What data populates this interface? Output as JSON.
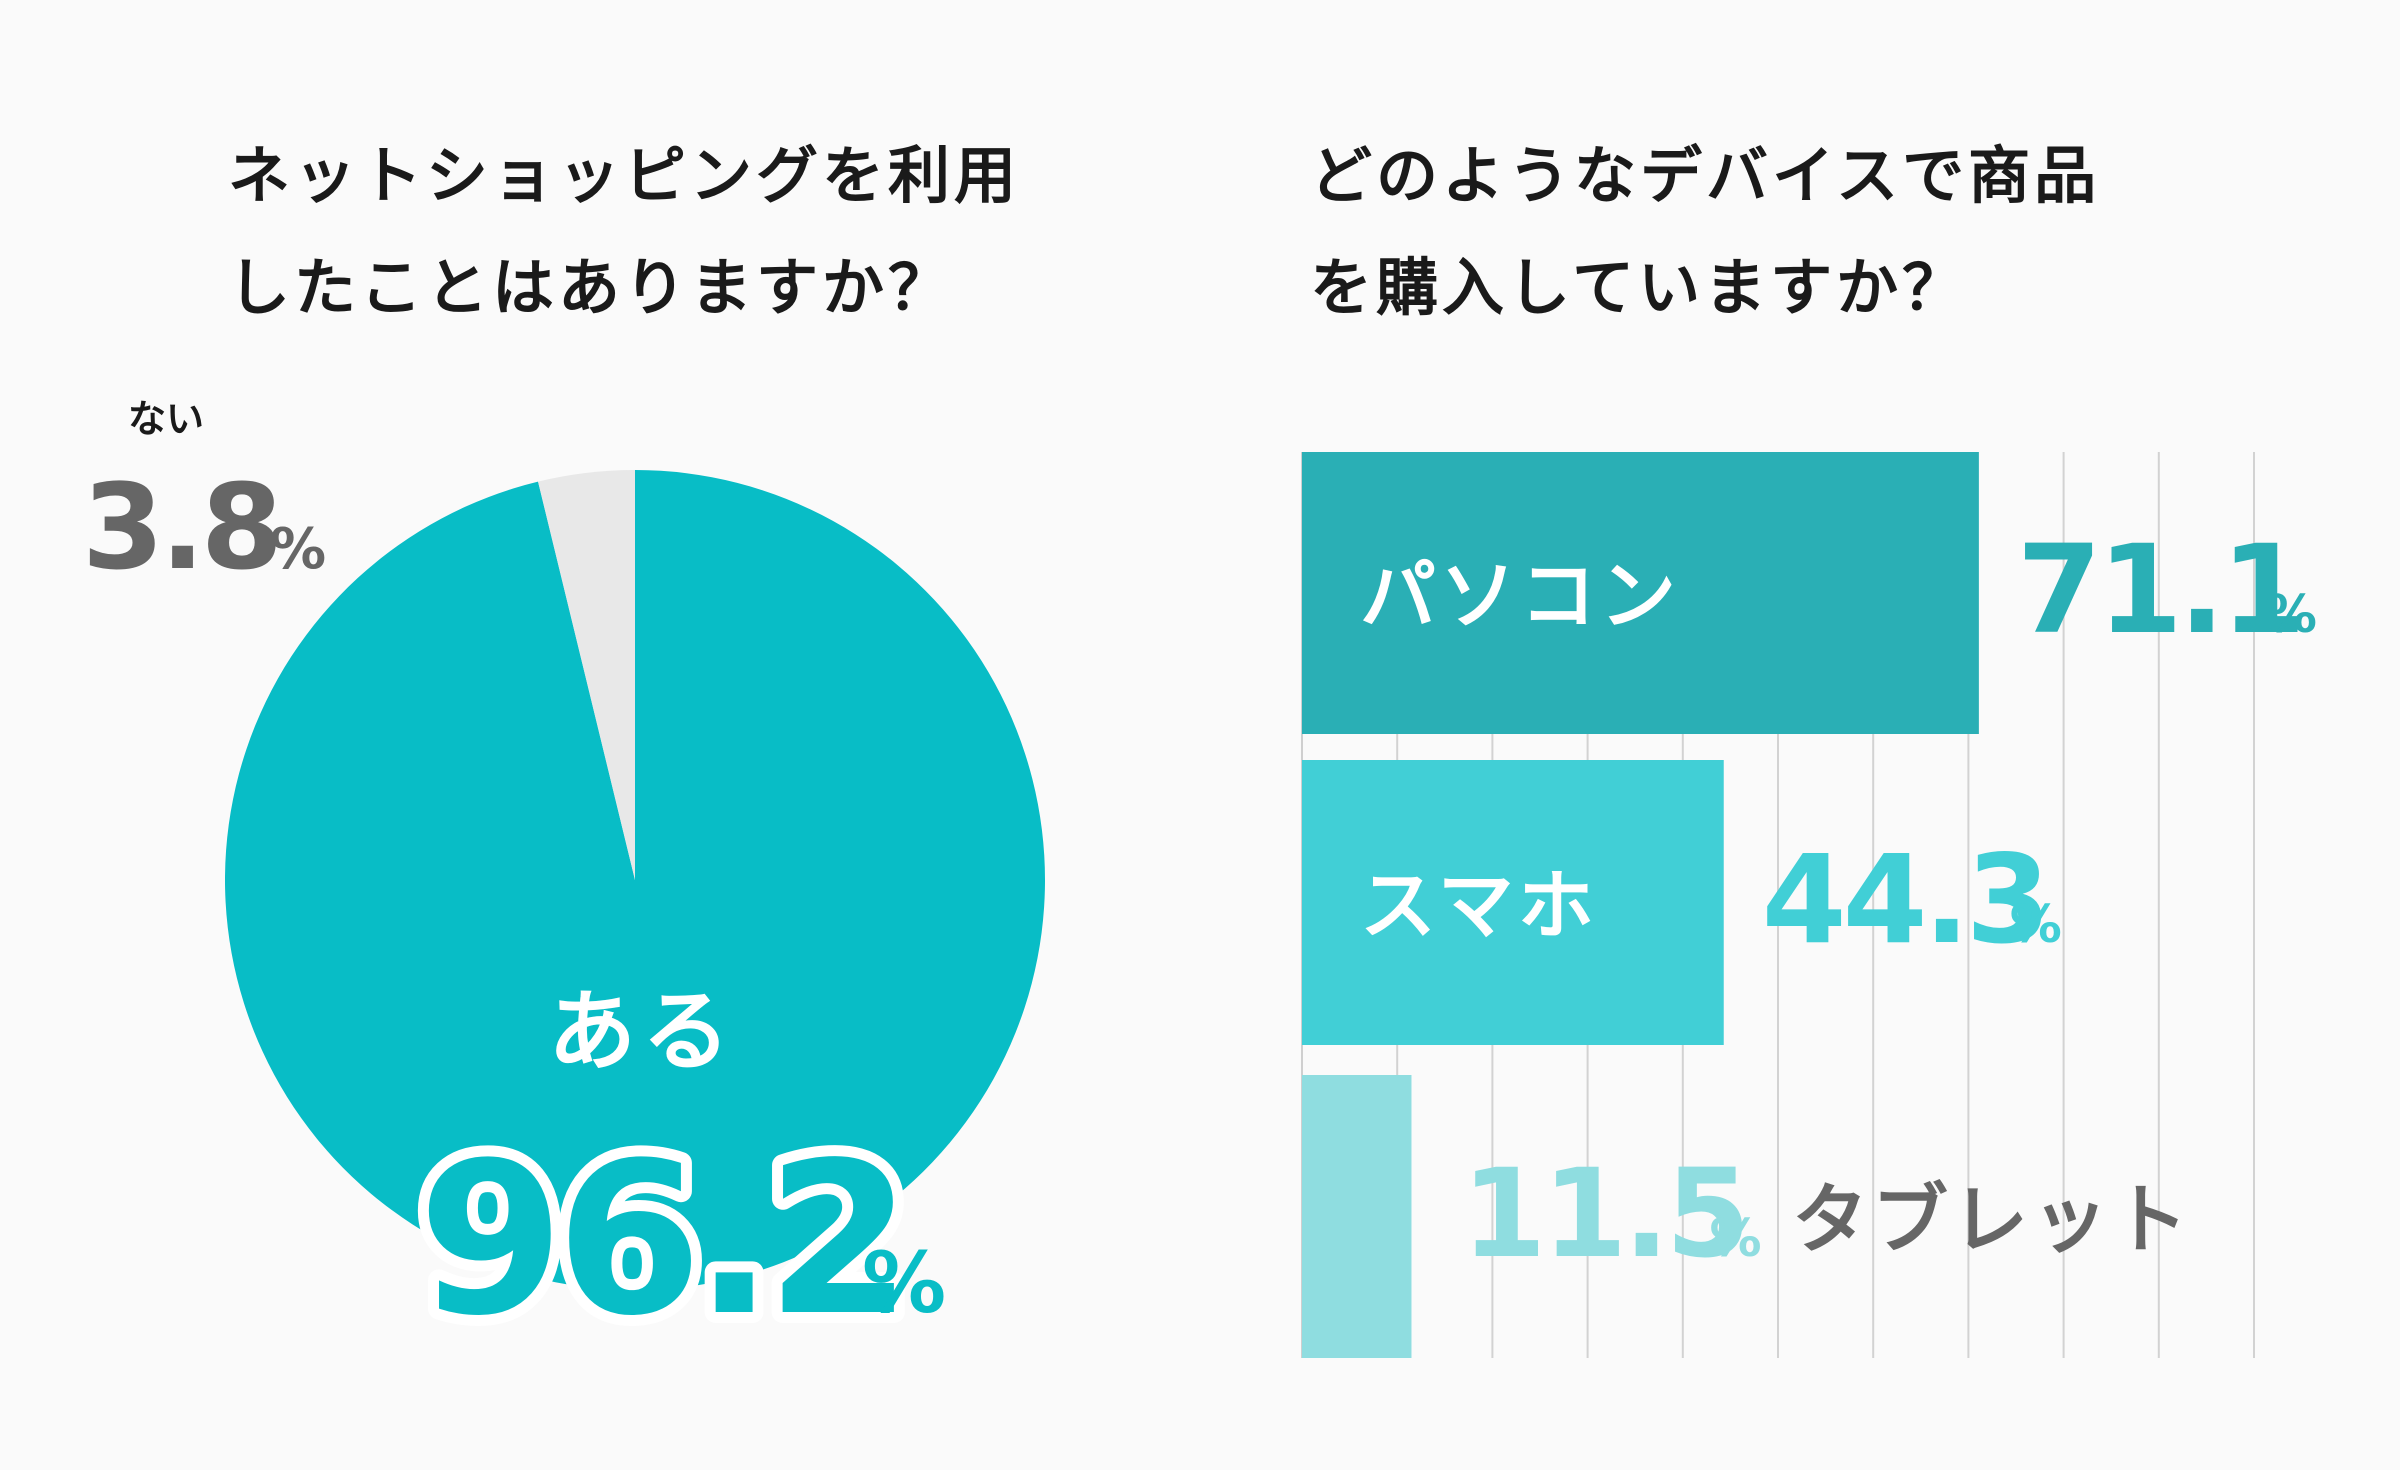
{
  "chart_data": [
    {
      "type": "pie",
      "title_lines": [
        "ネットショッピングを利用",
        "したことはありますか？"
      ],
      "slices": [
        {
          "label": "ある",
          "value": 96.2,
          "display": "96.2",
          "unit": "%",
          "color": "#08bdc6"
        },
        {
          "label": "ない",
          "value": 3.8,
          "display": "3.8",
          "unit": "%",
          "color": "#e8e8e8"
        }
      ]
    },
    {
      "type": "bar",
      "orientation": "horizontal",
      "title_lines": [
        "どのようなデバイスで商品",
        "を購入していますか？"
      ],
      "categories": [
        "パソコン",
        "スマホ",
        "タブレット"
      ],
      "values": [
        71.1,
        44.3,
        11.5
      ],
      "display": [
        "71.1",
        "44.3",
        "11.5"
      ],
      "unit": "%",
      "colors": [
        "#2aafb5",
        "#41cfd6",
        "#8fdde0"
      ],
      "xlim": [
        0,
        100
      ],
      "grid": true
    }
  ],
  "colors": {
    "background": "#fafafa",
    "title": "#1a1a1a",
    "label_dark": "#666666",
    "label_light": "#ffffff"
  }
}
